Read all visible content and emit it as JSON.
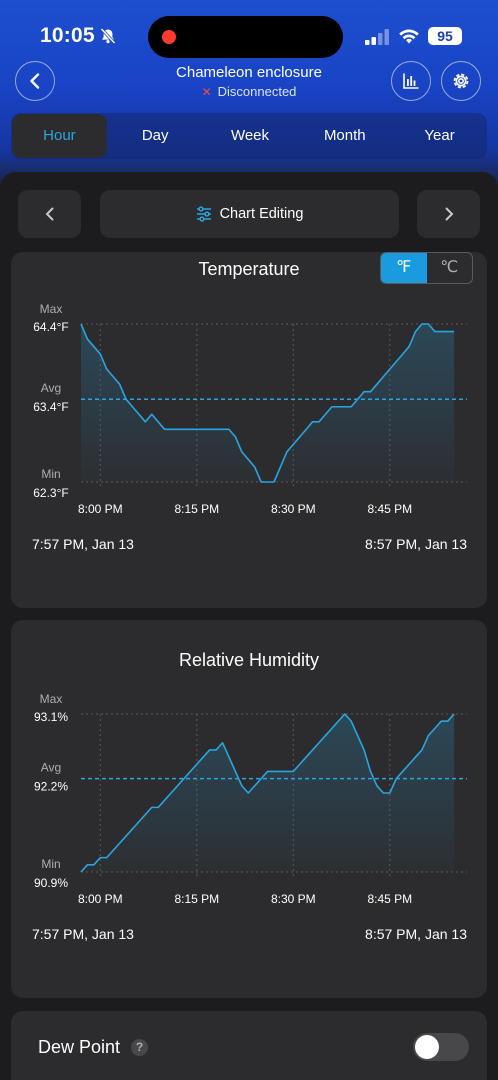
{
  "status_bar": {
    "time": "10:05",
    "battery": "95"
  },
  "header": {
    "device_name": "Chameleon enclosure",
    "connection_status": "Disconnected",
    "icons": [
      "back-icon",
      "bar-chart-icon",
      "gear-icon"
    ]
  },
  "tabs": [
    {
      "label": "Hour",
      "active": true
    },
    {
      "label": "Day",
      "active": false
    },
    {
      "label": "Week",
      "active": false
    },
    {
      "label": "Month",
      "active": false
    },
    {
      "label": "Year",
      "active": false
    }
  ],
  "pager": {
    "edit_label": "Chart Editing"
  },
  "colors": {
    "accent": "#1a9be0",
    "line": "#2aa5e0",
    "card": "#2c2c2e",
    "header_blue": "#1d4fcf"
  },
  "temperature": {
    "title": "Temperature",
    "units": {
      "fahrenheit": "℉",
      "celsius": "℃",
      "selected": "fahrenheit"
    },
    "start_label": "7:57 PM,  Jan 13",
    "end_label": "8:57 PM,  Jan 13"
  },
  "humidity": {
    "title": "Relative Humidity",
    "start_label": "7:57 PM,  Jan 13",
    "end_label": "8:57 PM,  Jan 13"
  },
  "dew_point": {
    "label": "Dew Point",
    "help": "?",
    "enabled": false
  },
  "chart_data": [
    {
      "type": "area",
      "title": "Temperature",
      "x_ticks": [
        "8:00 PM",
        "8:15 PM",
        "8:30 PM",
        "8:45 PM"
      ],
      "x_range_minutes": [
        -3,
        57
      ],
      "y_labels": {
        "max": "Max",
        "max_value": "64.4°F",
        "avg": "Avg",
        "avg_value": "63.4°F",
        "min": "Min",
        "min_value": "62.3°F"
      },
      "ylim": [
        62.3,
        64.4
      ],
      "avg": 63.4,
      "grid": true,
      "points": [
        [
          -3,
          64.4
        ],
        [
          -2,
          64.2
        ],
        [
          -1,
          64.1
        ],
        [
          0,
          64.0
        ],
        [
          1,
          63.8
        ],
        [
          2,
          63.7
        ],
        [
          3,
          63.6
        ],
        [
          4,
          63.4
        ],
        [
          5,
          63.3
        ],
        [
          6,
          63.2
        ],
        [
          7,
          63.1
        ],
        [
          8,
          63.2
        ],
        [
          9,
          63.1
        ],
        [
          10,
          63.0
        ],
        [
          11,
          63.0
        ],
        [
          12,
          63.0
        ],
        [
          13,
          63.0
        ],
        [
          14,
          63.0
        ],
        [
          15,
          63.0
        ],
        [
          16,
          63.0
        ],
        [
          17,
          63.0
        ],
        [
          18,
          63.0
        ],
        [
          19,
          63.0
        ],
        [
          20,
          63.0
        ],
        [
          21,
          62.9
        ],
        [
          22,
          62.7
        ],
        [
          23,
          62.6
        ],
        [
          24,
          62.5
        ],
        [
          25,
          62.3
        ],
        [
          26,
          62.3
        ],
        [
          27,
          62.3
        ],
        [
          28,
          62.5
        ],
        [
          29,
          62.7
        ],
        [
          30,
          62.8
        ],
        [
          31,
          62.9
        ],
        [
          32,
          63.0
        ],
        [
          33,
          63.1
        ],
        [
          34,
          63.1
        ],
        [
          35,
          63.2
        ],
        [
          36,
          63.3
        ],
        [
          37,
          63.3
        ],
        [
          38,
          63.3
        ],
        [
          39,
          63.3
        ],
        [
          40,
          63.4
        ],
        [
          41,
          63.5
        ],
        [
          42,
          63.5
        ],
        [
          43,
          63.6
        ],
        [
          44,
          63.7
        ],
        [
          45,
          63.8
        ],
        [
          46,
          63.9
        ],
        [
          47,
          64.0
        ],
        [
          48,
          64.1
        ],
        [
          49,
          64.3
        ],
        [
          50,
          64.4
        ],
        [
          51,
          64.4
        ],
        [
          52,
          64.3
        ],
        [
          53,
          64.3
        ],
        [
          54,
          64.3
        ],
        [
          55,
          64.3
        ]
      ]
    },
    {
      "type": "area",
      "title": "Relative Humidity",
      "x_ticks": [
        "8:00 PM",
        "8:15 PM",
        "8:30 PM",
        "8:45 PM"
      ],
      "x_range_minutes": [
        -3,
        57
      ],
      "y_labels": {
        "max": "Max",
        "max_value": "93.1%",
        "avg": "Avg",
        "avg_value": "92.2%",
        "min": "Min",
        "min_value": "90.9%"
      },
      "ylim": [
        90.9,
        93.1
      ],
      "avg": 92.2,
      "grid": true,
      "points": [
        [
          -3,
          90.9
        ],
        [
          -2,
          91.0
        ],
        [
          -1,
          91.0
        ],
        [
          0,
          91.1
        ],
        [
          1,
          91.1
        ],
        [
          2,
          91.2
        ],
        [
          3,
          91.3
        ],
        [
          4,
          91.4
        ],
        [
          5,
          91.5
        ],
        [
          6,
          91.6
        ],
        [
          7,
          91.7
        ],
        [
          8,
          91.8
        ],
        [
          9,
          91.8
        ],
        [
          10,
          91.9
        ],
        [
          11,
          92.0
        ],
        [
          12,
          92.1
        ],
        [
          13,
          92.2
        ],
        [
          14,
          92.3
        ],
        [
          15,
          92.4
        ],
        [
          16,
          92.5
        ],
        [
          17,
          92.6
        ],
        [
          18,
          92.6
        ],
        [
          19,
          92.7
        ],
        [
          20,
          92.5
        ],
        [
          21,
          92.3
        ],
        [
          22,
          92.1
        ],
        [
          23,
          92.0
        ],
        [
          24,
          92.1
        ],
        [
          25,
          92.2
        ],
        [
          26,
          92.3
        ],
        [
          27,
          92.3
        ],
        [
          28,
          92.3
        ],
        [
          29,
          92.3
        ],
        [
          30,
          92.3
        ],
        [
          31,
          92.4
        ],
        [
          32,
          92.5
        ],
        [
          33,
          92.6
        ],
        [
          34,
          92.7
        ],
        [
          35,
          92.8
        ],
        [
          36,
          92.9
        ],
        [
          37,
          93.0
        ],
        [
          38,
          93.1
        ],
        [
          39,
          93.0
        ],
        [
          40,
          92.8
        ],
        [
          41,
          92.6
        ],
        [
          42,
          92.3
        ],
        [
          43,
          92.1
        ],
        [
          44,
          92.0
        ],
        [
          45,
          92.0
        ],
        [
          46,
          92.2
        ],
        [
          47,
          92.3
        ],
        [
          48,
          92.4
        ],
        [
          49,
          92.5
        ],
        [
          50,
          92.6
        ],
        [
          51,
          92.8
        ],
        [
          52,
          92.9
        ],
        [
          53,
          93.0
        ],
        [
          54,
          93.0
        ],
        [
          55,
          93.1
        ]
      ]
    }
  ]
}
